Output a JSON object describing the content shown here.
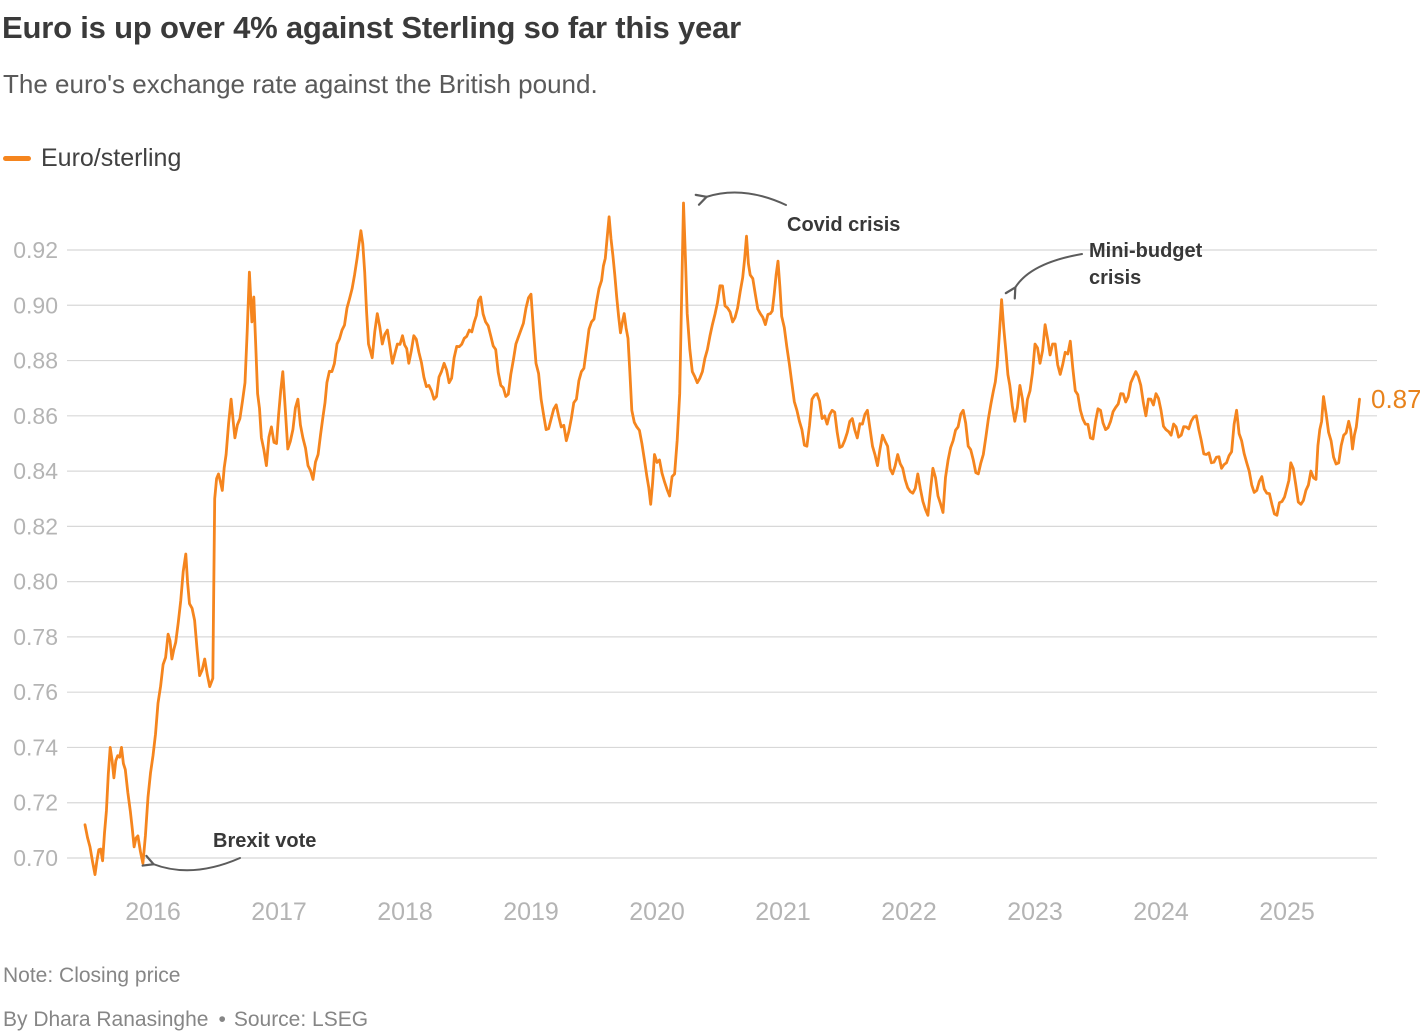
{
  "header": {
    "title": "Euro is up over 4% against Sterling so far this year",
    "subtitle": "The euro's exchange rate against the British pound."
  },
  "legend": {
    "label": "Euro/sterling",
    "color": "#F5851E"
  },
  "chart_data": {
    "type": "line",
    "title": "Euro is up over 4% against Sterling so far this year",
    "xlabel": "",
    "ylabel": "",
    "x_unit": "decimal_year",
    "x_domain": [
      2015.46,
      2025.58
    ],
    "ylim": [
      0.69,
      0.94
    ],
    "grid": "horizontal",
    "y_ticks": [
      0.92,
      0.9,
      0.88,
      0.86,
      0.84,
      0.82,
      0.8,
      0.78,
      0.76,
      0.74,
      0.72,
      0.7
    ],
    "x_ticks": [
      2016,
      2017,
      2018,
      2019,
      2020,
      2021,
      2022,
      2023,
      2024,
      2025
    ],
    "legend_position": "top-left",
    "end_label": "0.87",
    "annotations": [
      {
        "id": "brexit",
        "lines": [
          "Brexit vote"
        ],
        "target": {
          "t": 2015.92,
          "v": 0.698
        }
      },
      {
        "id": "covid",
        "lines": [
          "Covid crisis"
        ],
        "target": {
          "t": 2020.21,
          "v": 0.937
        }
      },
      {
        "id": "mini_budget",
        "lines": [
          "Mini-budget",
          "crisis"
        ],
        "target": {
          "t": 2022.74,
          "v": 0.902
        }
      }
    ],
    "series": [
      {
        "name": "Euro/sterling",
        "color": "#F5851E",
        "points": [
          [
            2015.46,
            0.712
          ],
          [
            2015.5,
            0.704
          ],
          [
            2015.54,
            0.694
          ],
          [
            2015.57,
            0.703
          ],
          [
            2015.6,
            0.699
          ],
          [
            2015.63,
            0.717
          ],
          [
            2015.66,
            0.74
          ],
          [
            2015.69,
            0.729
          ],
          [
            2015.72,
            0.737
          ],
          [
            2015.75,
            0.74
          ],
          [
            2015.78,
            0.732
          ],
          [
            2015.82,
            0.717
          ],
          [
            2015.85,
            0.704
          ],
          [
            2015.88,
            0.708
          ],
          [
            2015.92,
            0.698
          ],
          [
            2015.96,
            0.722
          ],
          [
            2016.0,
            0.737
          ],
          [
            2016.04,
            0.756
          ],
          [
            2016.08,
            0.77
          ],
          [
            2016.12,
            0.781
          ],
          [
            2016.15,
            0.772
          ],
          [
            2016.18,
            0.778
          ],
          [
            2016.22,
            0.793
          ],
          [
            2016.26,
            0.81
          ],
          [
            2016.29,
            0.792
          ],
          [
            2016.33,
            0.786
          ],
          [
            2016.37,
            0.766
          ],
          [
            2016.41,
            0.772
          ],
          [
            2016.45,
            0.762
          ],
          [
            2016.475,
            0.765
          ],
          [
            2016.49,
            0.83
          ],
          [
            2016.52,
            0.839
          ],
          [
            2016.55,
            0.833
          ],
          [
            2016.58,
            0.846
          ],
          [
            2016.62,
            0.866
          ],
          [
            2016.65,
            0.852
          ],
          [
            2016.69,
            0.859
          ],
          [
            2016.73,
            0.872
          ],
          [
            2016.765,
            0.912
          ],
          [
            2016.785,
            0.894
          ],
          [
            2016.8,
            0.903
          ],
          [
            2016.83,
            0.868
          ],
          [
            2016.86,
            0.852
          ],
          [
            2016.9,
            0.842
          ],
          [
            2016.94,
            0.856
          ],
          [
            2016.98,
            0.85
          ],
          [
            2017.03,
            0.876
          ],
          [
            2017.07,
            0.848
          ],
          [
            2017.11,
            0.855
          ],
          [
            2017.15,
            0.866
          ],
          [
            2017.19,
            0.852
          ],
          [
            2017.23,
            0.842
          ],
          [
            2017.27,
            0.837
          ],
          [
            2017.31,
            0.846
          ],
          [
            2017.35,
            0.86
          ],
          [
            2017.38,
            0.872
          ],
          [
            2017.42,
            0.876
          ],
          [
            2017.46,
            0.886
          ],
          [
            2017.5,
            0.891
          ],
          [
            2017.54,
            0.899
          ],
          [
            2017.58,
            0.906
          ],
          [
            2017.62,
            0.917
          ],
          [
            2017.65,
            0.927
          ],
          [
            2017.68,
            0.912
          ],
          [
            2017.71,
            0.886
          ],
          [
            2017.74,
            0.881
          ],
          [
            2017.78,
            0.897
          ],
          [
            2017.82,
            0.886
          ],
          [
            2017.86,
            0.891
          ],
          [
            2017.9,
            0.879
          ],
          [
            2017.94,
            0.886
          ],
          [
            2017.98,
            0.889
          ],
          [
            2018.03,
            0.879
          ],
          [
            2018.07,
            0.889
          ],
          [
            2018.11,
            0.883
          ],
          [
            2018.15,
            0.874
          ],
          [
            2018.19,
            0.871
          ],
          [
            2018.23,
            0.866
          ],
          [
            2018.27,
            0.874
          ],
          [
            2018.31,
            0.879
          ],
          [
            2018.35,
            0.872
          ],
          [
            2018.39,
            0.881
          ],
          [
            2018.43,
            0.885
          ],
          [
            2018.47,
            0.888
          ],
          [
            2018.51,
            0.891
          ],
          [
            2018.55,
            0.894
          ],
          [
            2018.6,
            0.903
          ],
          [
            2018.64,
            0.894
          ],
          [
            2018.68,
            0.889
          ],
          [
            2018.72,
            0.884
          ],
          [
            2018.76,
            0.871
          ],
          [
            2018.8,
            0.867
          ],
          [
            2018.84,
            0.875
          ],
          [
            2018.88,
            0.886
          ],
          [
            2018.92,
            0.891
          ],
          [
            2018.96,
            0.899
          ],
          [
            2019.0,
            0.904
          ],
          [
            2019.04,
            0.879
          ],
          [
            2019.08,
            0.866
          ],
          [
            2019.12,
            0.855
          ],
          [
            2019.16,
            0.859
          ],
          [
            2019.2,
            0.864
          ],
          [
            2019.24,
            0.856
          ],
          [
            2019.28,
            0.851
          ],
          [
            2019.32,
            0.859
          ],
          [
            2019.36,
            0.866
          ],
          [
            2019.4,
            0.876
          ],
          [
            2019.44,
            0.884
          ],
          [
            2019.48,
            0.894
          ],
          [
            2019.52,
            0.901
          ],
          [
            2019.56,
            0.909
          ],
          [
            2019.59,
            0.917
          ],
          [
            2019.62,
            0.932
          ],
          [
            2019.65,
            0.918
          ],
          [
            2019.68,
            0.903
          ],
          [
            2019.71,
            0.89
          ],
          [
            2019.74,
            0.897
          ],
          [
            2019.77,
            0.888
          ],
          [
            2019.8,
            0.862
          ],
          [
            2019.84,
            0.856
          ],
          [
            2019.88,
            0.85
          ],
          [
            2019.92,
            0.838
          ],
          [
            2019.95,
            0.828
          ],
          [
            2019.98,
            0.846
          ],
          [
            2020.02,
            0.844
          ],
          [
            2020.06,
            0.836
          ],
          [
            2020.1,
            0.831
          ],
          [
            2020.14,
            0.839
          ],
          [
            2020.18,
            0.868
          ],
          [
            2020.21,
            0.937
          ],
          [
            2020.24,
            0.897
          ],
          [
            2020.28,
            0.876
          ],
          [
            2020.32,
            0.872
          ],
          [
            2020.36,
            0.876
          ],
          [
            2020.4,
            0.884
          ],
          [
            2020.44,
            0.893
          ],
          [
            2020.48,
            0.901
          ],
          [
            2020.52,
            0.907
          ],
          [
            2020.56,
            0.899
          ],
          [
            2020.6,
            0.894
          ],
          [
            2020.64,
            0.899
          ],
          [
            2020.68,
            0.91
          ],
          [
            2020.71,
            0.925
          ],
          [
            2020.74,
            0.911
          ],
          [
            2020.78,
            0.904
          ],
          [
            2020.82,
            0.897
          ],
          [
            2020.86,
            0.893
          ],
          [
            2020.9,
            0.897
          ],
          [
            2020.93,
            0.904
          ],
          [
            2020.96,
            0.916
          ],
          [
            2020.99,
            0.896
          ],
          [
            2021.03,
            0.885
          ],
          [
            2021.07,
            0.872
          ],
          [
            2021.11,
            0.862
          ],
          [
            2021.15,
            0.855
          ],
          [
            2021.19,
            0.849
          ],
          [
            2021.23,
            0.866
          ],
          [
            2021.27,
            0.868
          ],
          [
            2021.31,
            0.859
          ],
          [
            2021.35,
            0.857
          ],
          [
            2021.39,
            0.862
          ],
          [
            2021.43,
            0.854
          ],
          [
            2021.47,
            0.849
          ],
          [
            2021.51,
            0.854
          ],
          [
            2021.55,
            0.859
          ],
          [
            2021.59,
            0.852
          ],
          [
            2021.63,
            0.857
          ],
          [
            2021.67,
            0.862
          ],
          [
            2021.71,
            0.849
          ],
          [
            2021.75,
            0.842
          ],
          [
            2021.79,
            0.853
          ],
          [
            2021.83,
            0.849
          ],
          [
            2021.87,
            0.839
          ],
          [
            2021.91,
            0.846
          ],
          [
            2021.95,
            0.841
          ],
          [
            2021.99,
            0.834
          ],
          [
            2022.03,
            0.832
          ],
          [
            2022.07,
            0.839
          ],
          [
            2022.11,
            0.829
          ],
          [
            2022.15,
            0.824
          ],
          [
            2022.19,
            0.841
          ],
          [
            2022.23,
            0.831
          ],
          [
            2022.27,
            0.825
          ],
          [
            2022.31,
            0.844
          ],
          [
            2022.35,
            0.851
          ],
          [
            2022.39,
            0.856
          ],
          [
            2022.43,
            0.862
          ],
          [
            2022.47,
            0.849
          ],
          [
            2022.51,
            0.844
          ],
          [
            2022.55,
            0.839
          ],
          [
            2022.59,
            0.846
          ],
          [
            2022.63,
            0.859
          ],
          [
            2022.67,
            0.869
          ],
          [
            2022.7,
            0.878
          ],
          [
            2022.735,
            0.902
          ],
          [
            2022.77,
            0.883
          ],
          [
            2022.8,
            0.871
          ],
          [
            2022.84,
            0.858
          ],
          [
            2022.88,
            0.871
          ],
          [
            2022.92,
            0.858
          ],
          [
            2022.96,
            0.869
          ],
          [
            2023.0,
            0.886
          ],
          [
            2023.04,
            0.879
          ],
          [
            2023.08,
            0.893
          ],
          [
            2023.12,
            0.882
          ],
          [
            2023.16,
            0.886
          ],
          [
            2023.2,
            0.875
          ],
          [
            2023.24,
            0.883
          ],
          [
            2023.28,
            0.887
          ],
          [
            2023.32,
            0.869
          ],
          [
            2023.36,
            0.862
          ],
          [
            2023.4,
            0.857
          ],
          [
            2023.44,
            0.852
          ],
          [
            2023.48,
            0.858
          ],
          [
            2023.52,
            0.862
          ],
          [
            2023.56,
            0.855
          ],
          [
            2023.6,
            0.858
          ],
          [
            2023.64,
            0.863
          ],
          [
            2023.68,
            0.868
          ],
          [
            2023.72,
            0.865
          ],
          [
            2023.76,
            0.872
          ],
          [
            2023.8,
            0.876
          ],
          [
            2023.84,
            0.871
          ],
          [
            2023.88,
            0.86
          ],
          [
            2023.92,
            0.866
          ],
          [
            2023.96,
            0.868
          ],
          [
            2024.0,
            0.862
          ],
          [
            2024.04,
            0.855
          ],
          [
            2024.08,
            0.853
          ],
          [
            2024.12,
            0.856
          ],
          [
            2024.16,
            0.853
          ],
          [
            2024.2,
            0.856
          ],
          [
            2024.24,
            0.858
          ],
          [
            2024.28,
            0.86
          ],
          [
            2024.32,
            0.851
          ],
          [
            2024.36,
            0.846
          ],
          [
            2024.4,
            0.843
          ],
          [
            2024.44,
            0.845
          ],
          [
            2024.48,
            0.841
          ],
          [
            2024.52,
            0.843
          ],
          [
            2024.56,
            0.847
          ],
          [
            2024.6,
            0.862
          ],
          [
            2024.64,
            0.851
          ],
          [
            2024.68,
            0.843
          ],
          [
            2024.72,
            0.835
          ],
          [
            2024.76,
            0.833
          ],
          [
            2024.8,
            0.838
          ],
          [
            2024.84,
            0.832
          ],
          [
            2024.88,
            0.828
          ],
          [
            2024.92,
            0.824
          ],
          [
            2024.96,
            0.829
          ],
          [
            2025.0,
            0.834
          ],
          [
            2025.03,
            0.843
          ],
          [
            2025.07,
            0.835
          ],
          [
            2025.11,
            0.828
          ],
          [
            2025.15,
            0.833
          ],
          [
            2025.19,
            0.84
          ],
          [
            2025.23,
            0.837
          ],
          [
            2025.26,
            0.855
          ],
          [
            2025.29,
            0.867
          ],
          [
            2025.33,
            0.854
          ],
          [
            2025.37,
            0.845
          ],
          [
            2025.41,
            0.843
          ],
          [
            2025.45,
            0.853
          ],
          [
            2025.49,
            0.858
          ],
          [
            2025.52,
            0.848
          ],
          [
            2025.55,
            0.856
          ],
          [
            2025.575,
            0.866
          ]
        ]
      }
    ]
  },
  "footer": {
    "note": "Note: Closing price",
    "byline": "By Dhara Ranasinghe",
    "separator": "•",
    "source": "Source: LSEG"
  }
}
